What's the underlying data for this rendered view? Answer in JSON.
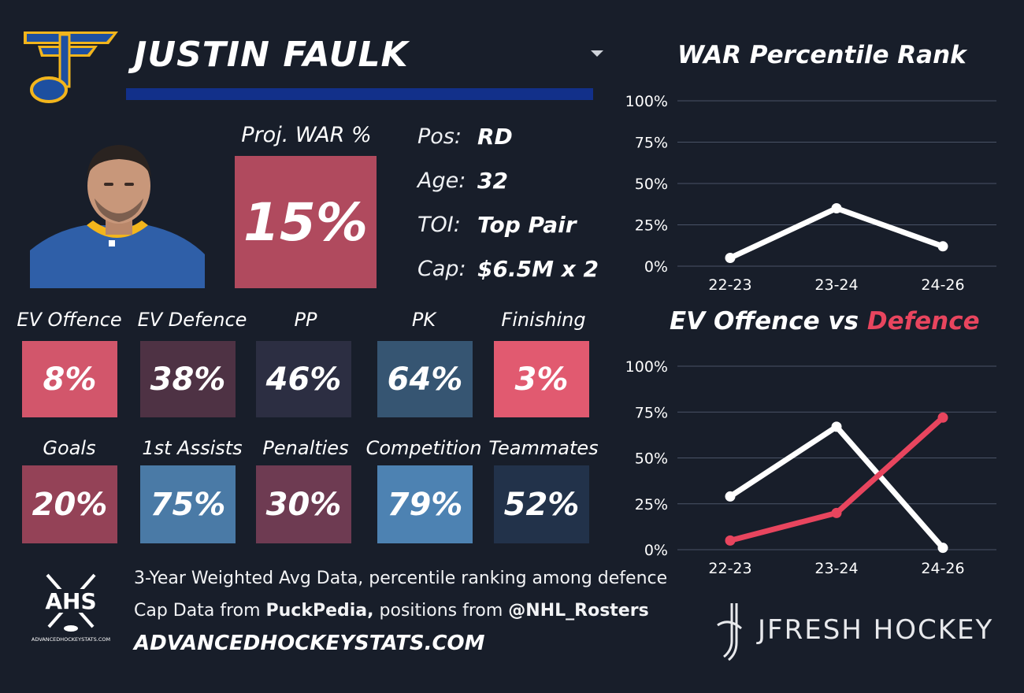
{
  "player": {
    "name": "JUSTIN FAULK",
    "team_logo": "st-louis-blues-note-logo",
    "headshot": "player-headshot"
  },
  "projection": {
    "label": "Proj. WAR %",
    "value": "15%",
    "color": "#b04a5e"
  },
  "info": [
    {
      "key": "Pos:",
      "value": "RD"
    },
    {
      "key": "Age:",
      "value": "32"
    },
    {
      "key": "TOI:",
      "value": "Top Pair"
    },
    {
      "key": "Cap:",
      "value": "$6.5M x 2"
    }
  ],
  "stats_row1": [
    {
      "label": "EV Offence",
      "value": "8%",
      "color": "#d2566b"
    },
    {
      "label": "EV Defence",
      "value": "38%",
      "color": "#4e3244"
    },
    {
      "label": "PP",
      "value": "46%",
      "color": "#2c2e42"
    },
    {
      "label": "PK",
      "value": "64%",
      "color": "#365572"
    },
    {
      "label": "Finishing",
      "value": "3%",
      "color": "#e15a70"
    }
  ],
  "stats_row2": [
    {
      "label": "Goals",
      "value": "20%",
      "color": "#944257"
    },
    {
      "label": "1st Assists",
      "value": "75%",
      "color": "#4a7aa6"
    },
    {
      "label": "Penalties",
      "value": "30%",
      "color": "#6e3b52"
    },
    {
      "label": "Competition",
      "value": "79%",
      "color": "#4d82b2"
    },
    {
      "label": "Teammates",
      "value": "52%",
      "color": "#22324a"
    }
  ],
  "chart_data": [
    {
      "type": "line",
      "title": "WAR Percentile Rank",
      "categories": [
        "22-23",
        "23-24",
        "24-26"
      ],
      "yticks": [
        "0%",
        "25%",
        "50%",
        "75%",
        "100%"
      ],
      "ylim": [
        0,
        100
      ],
      "grid": true,
      "series": [
        {
          "values": [
            5,
            35,
            12
          ],
          "color": "#ffffff"
        }
      ]
    },
    {
      "type": "line",
      "title_parts": [
        "EV Offence vs ",
        "Defence"
      ],
      "title_colors": [
        "#ffffff",
        "#e8455e"
      ],
      "categories": [
        "22-23",
        "23-24",
        "24-26"
      ],
      "yticks": [
        "0%",
        "25%",
        "50%",
        "75%",
        "100%"
      ],
      "ylim": [
        0,
        100
      ],
      "grid": true,
      "series": [
        {
          "values": [
            29,
            67,
            1
          ],
          "color": "#ffffff"
        },
        {
          "values": [
            5,
            20,
            72
          ],
          "color": "#e8455e"
        }
      ]
    }
  ],
  "footer": {
    "logo": "ahs-logo",
    "logo_text": "AHS",
    "logo_subtext": "ADVANCEDHOCKEYSTATS.COM",
    "line1": "3-Year Weighted Avg Data, percentile ranking among defence",
    "line2_pre": "Cap Data from ",
    "line2_bold1": "PuckPedia,",
    "line2_mid": " positions from ",
    "line2_bold2": "@NHL_Rosters",
    "url": "ADVANCEDHOCKEYSTATS.COM",
    "brand": "JFRESH HOCKEY",
    "brand_icon": "jfresh-stick-logo"
  }
}
